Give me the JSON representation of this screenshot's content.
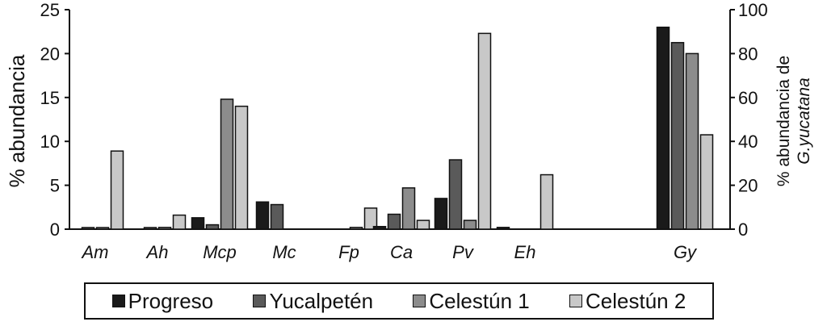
{
  "chart_data": {
    "type": "bar",
    "categories": [
      "Am",
      "Ah",
      "Mcp",
      "Mc",
      "Fp",
      "Ca",
      "Pv",
      "Eh",
      "Gy"
    ],
    "series": [
      {
        "name": "Progreso",
        "color": "#1a1a1a",
        "values": [
          0,
          0,
          1.3,
          3.1,
          0,
          0.3,
          3.5,
          0.2,
          92
        ]
      },
      {
        "name": "Yucalpetén",
        "color": "#5a5a5a",
        "values": [
          0.1,
          0.1,
          0.5,
          2.8,
          0,
          1.7,
          7.9,
          0,
          85
        ]
      },
      {
        "name": "Celestún 1",
        "color": "#8c8c8c",
        "values": [
          0.1,
          0.2,
          14.8,
          0,
          0.2,
          4.7,
          1.0,
          0,
          80
        ]
      },
      {
        "name": "Celestún 2",
        "color": "#c8c8c8",
        "values": [
          8.9,
          1.6,
          14.0,
          0,
          2.4,
          1.0,
          22.3,
          6.2,
          43
        ]
      }
    ],
    "secondary_axis_category": "Gy",
    "ylabel": "% abundancia",
    "y2label_line1": "% abundancia de",
    "y2label_line2": "G.yucatana",
    "ylim": [
      0,
      25
    ],
    "y2lim": [
      0,
      100
    ],
    "yticks": [
      0,
      5,
      10,
      15,
      20,
      25
    ],
    "y2ticks": [
      0,
      20,
      40,
      60,
      80,
      100
    ],
    "grid": false,
    "legend_position": "bottom"
  }
}
